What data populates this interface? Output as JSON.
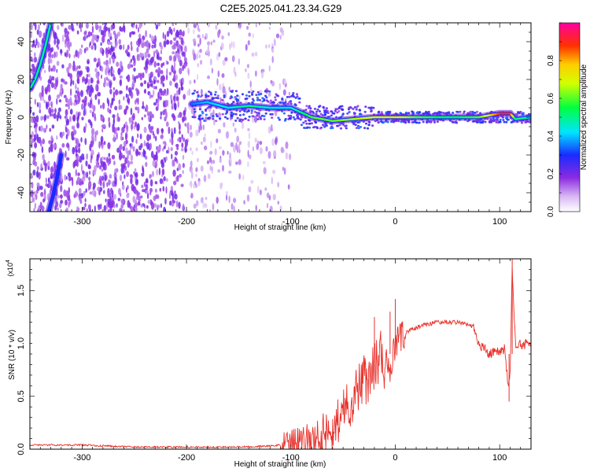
{
  "title": "C2E5.2025.041.23.34.G29",
  "chart_data": [
    {
      "type": "heatmap",
      "xlabel": "Height of straight line (km)",
      "ylabel": "Frequency (Hz)",
      "xlim": [
        -350,
        130
      ],
      "ylim": [
        -50,
        50
      ],
      "xticks": [
        -300,
        -200,
        -100,
        0,
        100
      ],
      "yticks": [
        -40,
        -20,
        0,
        20,
        40
      ],
      "colorbar": {
        "label": "Normalized spectral amplitude",
        "ticks": [
          0.0,
          0.2,
          0.4,
          0.6,
          0.8
        ],
        "range": [
          0,
          1
        ],
        "colormap": "rainbow (white-violet-blue-cyan-green-yellow-red-magenta)"
      },
      "tracks": [
        {
          "name": "main-frequency-track",
          "x": [
            -195,
            -180,
            -160,
            -140,
            -120,
            -100,
            -80,
            -60,
            -40,
            -20,
            0,
            20,
            40,
            60,
            80,
            100,
            110,
            115,
            130
          ],
          "y": [
            7,
            8,
            5,
            6,
            5,
            5,
            0,
            -2,
            -1,
            0,
            0,
            0,
            0,
            0,
            0,
            2,
            2,
            -1,
            0
          ],
          "amplitude": [
            0.35,
            0.4,
            0.45,
            0.5,
            0.45,
            0.45,
            0.6,
            0.6,
            0.65,
            0.7,
            0.72,
            0.6,
            0.55,
            0.55,
            0.6,
            0.9,
            0.9,
            0.5,
            0.5
          ]
        },
        {
          "name": "upper-left-track",
          "x": [
            -350,
            -345,
            -340,
            -335,
            -330
          ],
          "y": [
            15,
            20,
            28,
            38,
            50
          ],
          "amplitude": [
            0.5,
            0.5,
            0.5,
            0.5,
            0.5
          ]
        },
        {
          "name": "lower-left-track",
          "x": [
            -332,
            -328,
            -324,
            -320
          ],
          "y": [
            -50,
            -42,
            -32,
            -20
          ],
          "amplitude": [
            0.3,
            0.3,
            0.3,
            0.3
          ]
        }
      ]
    },
    {
      "type": "line",
      "xlabel": "Height of straight line (km)",
      "ylabel": "SNR (10 * v/v)",
      "y_multiplier": "(x10",
      "y_multiplier_exp": "4",
      "xlim": [
        -350,
        130
      ],
      "ylim": [
        0,
        1.8
      ],
      "xticks": [
        -300,
        -200,
        -100,
        0,
        100
      ],
      "yticks": [
        0.0,
        0.5,
        1.0,
        1.5
      ],
      "color": "#e8302a",
      "x": [
        -350,
        -300,
        -250,
        -200,
        -150,
        -120,
        -100,
        -80,
        -70,
        -60,
        -50,
        -40,
        -30,
        -20,
        -10,
        -5,
        0,
        10,
        20,
        30,
        40,
        50,
        60,
        70,
        75,
        80,
        90,
        100,
        105,
        108,
        110,
        112,
        115,
        120,
        130
      ],
      "y": [
        0.04,
        0.04,
        0.02,
        0.02,
        0.02,
        0.03,
        0.05,
        0.08,
        0.15,
        0.2,
        0.35,
        0.5,
        0.65,
        0.8,
        0.85,
        0.7,
        1.0,
        1.1,
        1.15,
        1.18,
        1.2,
        1.2,
        1.2,
        1.18,
        1.15,
        1.0,
        0.9,
        0.92,
        0.95,
        0.6,
        0.7,
        1.7,
        1.0,
        1.0,
        0.98
      ],
      "spikes": [
        {
          "x": 0,
          "y": 1.42
        },
        {
          "x": -20,
          "y": 1.25
        },
        {
          "x": -5,
          "y": 1.3
        },
        {
          "x": 112,
          "y": 1.8
        },
        {
          "x": 109,
          "y": 0.45
        }
      ]
    }
  ]
}
